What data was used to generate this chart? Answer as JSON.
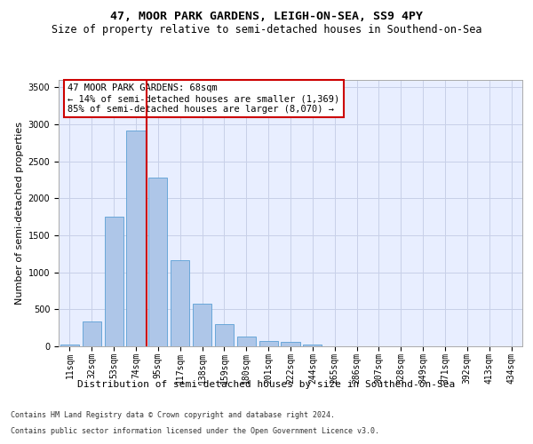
{
  "title": "47, MOOR PARK GARDENS, LEIGH-ON-SEA, SS9 4PY",
  "subtitle": "Size of property relative to semi-detached houses in Southend-on-Sea",
  "xlabel": "Distribution of semi-detached houses by size in Southend-on-Sea",
  "ylabel": "Number of semi-detached properties",
  "footer1": "Contains HM Land Registry data © Crown copyright and database right 2024.",
  "footer2": "Contains public sector information licensed under the Open Government Licence v3.0.",
  "annotation_line1": "47 MOOR PARK GARDENS: 68sqm",
  "annotation_line2": "← 14% of semi-detached houses are smaller (1,369)",
  "annotation_line3": "85% of semi-detached houses are larger (8,070) →",
  "bar_categories": [
    "11sqm",
    "32sqm",
    "53sqm",
    "74sqm",
    "95sqm",
    "117sqm",
    "138sqm",
    "159sqm",
    "180sqm",
    "201sqm",
    "222sqm",
    "244sqm",
    "265sqm",
    "286sqm",
    "307sqm",
    "328sqm",
    "349sqm",
    "371sqm",
    "392sqm",
    "413sqm",
    "434sqm"
  ],
  "bar_values": [
    25,
    340,
    1750,
    2920,
    2280,
    1160,
    580,
    300,
    130,
    70,
    55,
    25,
    5,
    3,
    2,
    1,
    0,
    0,
    0,
    0,
    0
  ],
  "bar_color": "#aec6e8",
  "bar_edge_color": "#5a9fd4",
  "vline_color": "#cc0000",
  "vline_x": 3.5,
  "ylim": [
    0,
    3600
  ],
  "yticks": [
    0,
    500,
    1000,
    1500,
    2000,
    2500,
    3000,
    3500
  ],
  "background_color": "#e8eeff",
  "grid_color": "#c8d0e8",
  "annotation_box_edge": "#cc0000",
  "title_fontsize": 9.5,
  "subtitle_fontsize": 8.5,
  "xlabel_fontsize": 8,
  "ylabel_fontsize": 8,
  "tick_fontsize": 7,
  "annotation_fontsize": 7.5,
  "footer_fontsize": 6
}
